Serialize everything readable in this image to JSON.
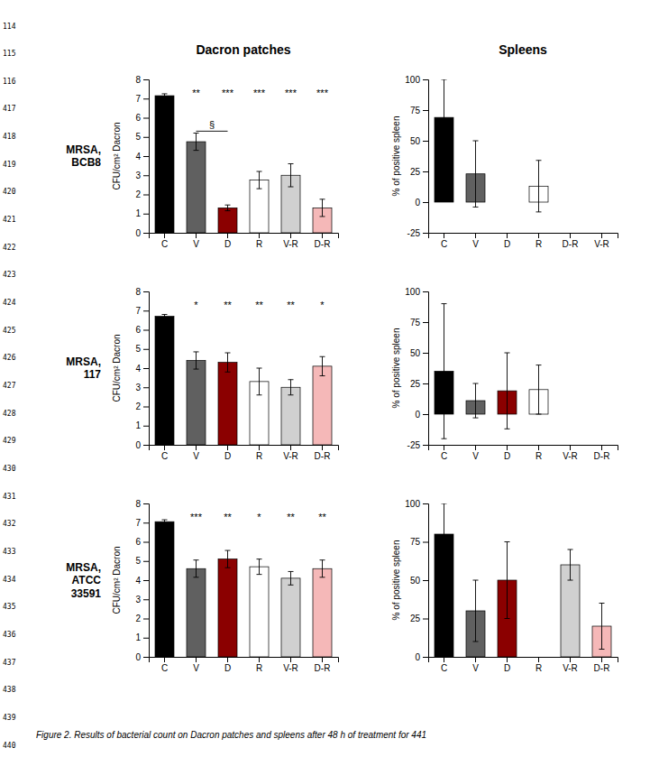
{
  "chart_data": [
    {
      "type": "bar",
      "categories": [
        "C",
        "V",
        "D",
        "R",
        "V-R",
        "D-R"
      ],
      "values": [
        7.15,
        4.75,
        1.3,
        2.75,
        3.0,
        1.3
      ],
      "errors": [
        0.1,
        0.45,
        0.15,
        0.45,
        0.6,
        0.45
      ],
      "colors": [
        "#000000",
        "#606060",
        "#8B0000",
        "#ffffff",
        "#d0d0d0",
        "#f5b8b8"
      ],
      "ylim": [
        0,
        8
      ],
      "yticks": [
        0,
        1,
        2,
        3,
        4,
        5,
        6,
        7,
        8
      ],
      "y_label": "CFU/cm² Dacron",
      "annotations": [
        {
          "text": "**",
          "x": "V",
          "y": 7.5
        },
        {
          "text": "***",
          "x": "D",
          "y": 7.5
        },
        {
          "text": "***",
          "x": "R",
          "y": 7.5
        },
        {
          "text": "***",
          "x": "V-R",
          "y": 7.5
        },
        {
          "text": "***",
          "x": "D-R",
          "y": 7.5
        },
        {
          "text": "§",
          "x_start": "V",
          "x_end": "D",
          "y": 5.3
        }
      ]
    },
    {
      "type": "bar",
      "categories": [
        "C",
        "V",
        "D",
        "R",
        "D-R",
        "V-R"
      ],
      "values": [
        69,
        23,
        0,
        13,
        0,
        0
      ],
      "errors": [
        31,
        27,
        0,
        21,
        0,
        0
      ],
      "colors": [
        "#000000",
        "#606060",
        "#ffffff",
        "#ffffff",
        "#ffffff",
        "#ffffff"
      ],
      "ylim": [
        -25,
        100
      ],
      "yticks": [
        -25,
        0,
        25,
        50,
        75,
        100
      ],
      "y_label": "% of positive spleen"
    },
    {
      "type": "bar",
      "categories": [
        "C",
        "V",
        "D",
        "R",
        "V-R",
        "D-R"
      ],
      "values": [
        6.7,
        4.4,
        4.3,
        3.3,
        3.0,
        4.1
      ],
      "errors": [
        0.1,
        0.45,
        0.5,
        0.7,
        0.4,
        0.5
      ],
      "colors": [
        "#000000",
        "#606060",
        "#8B0000",
        "#ffffff",
        "#d0d0d0",
        "#f5b8b8"
      ],
      "ylim": [
        0,
        8
      ],
      "yticks": [
        0,
        1,
        2,
        3,
        4,
        5,
        6,
        7,
        8
      ],
      "y_label": "CFU/cm² Dacron",
      "annotations": [
        {
          "text": "*",
          "x": "V",
          "y": 7.5
        },
        {
          "text": "**",
          "x": "D",
          "y": 7.5
        },
        {
          "text": "**",
          "x": "R",
          "y": 7.5
        },
        {
          "text": "**",
          "x": "V-R",
          "y": 7.5
        },
        {
          "text": "*",
          "x": "D-R",
          "y": 7.5
        }
      ]
    },
    {
      "type": "bar",
      "categories": [
        "C",
        "V",
        "D",
        "R",
        "V-R",
        "D-R"
      ],
      "values": [
        35,
        11,
        19,
        20,
        0,
        0
      ],
      "errors": [
        55,
        14,
        31,
        20,
        0,
        0
      ],
      "colors": [
        "#000000",
        "#606060",
        "#8B0000",
        "#ffffff",
        "#ffffff",
        "#ffffff"
      ],
      "ylim": [
        -25,
        100
      ],
      "yticks": [
        -25,
        0,
        25,
        50,
        75,
        100
      ],
      "y_label": "% of positive spleen"
    },
    {
      "type": "bar",
      "categories": [
        "C",
        "V",
        "D",
        "R",
        "V-R",
        "D-R"
      ],
      "values": [
        7.05,
        4.6,
        5.1,
        4.7,
        4.1,
        4.6
      ],
      "errors": [
        0.1,
        0.45,
        0.45,
        0.4,
        0.35,
        0.45
      ],
      "colors": [
        "#000000",
        "#606060",
        "#8B0000",
        "#ffffff",
        "#d0d0d0",
        "#f5b8b8"
      ],
      "ylim": [
        0,
        8
      ],
      "yticks": [
        0,
        1,
        2,
        3,
        4,
        5,
        6,
        7,
        8
      ],
      "y_label": "CFU/cm² Dacron",
      "annotations": [
        {
          "text": "***",
          "x": "V",
          "y": 7.5
        },
        {
          "text": "**",
          "x": "D",
          "y": 7.5
        },
        {
          "text": "*",
          "x": "R",
          "y": 7.5
        },
        {
          "text": "**",
          "x": "V-R",
          "y": 7.5
        },
        {
          "text": "**",
          "x": "D-R",
          "y": 7.5
        }
      ]
    },
    {
      "type": "bar",
      "categories": [
        "C",
        "V",
        "D",
        "R",
        "V-R",
        "D-R"
      ],
      "values": [
        80,
        30,
        50,
        0,
        60,
        20
      ],
      "errors": [
        20,
        20,
        25,
        0,
        10,
        15
      ],
      "colors": [
        "#000000",
        "#606060",
        "#8B0000",
        "#ffffff",
        "#d0d0d0",
        "#f5b8b8"
      ],
      "ylim": [
        0,
        100
      ],
      "yticks": [
        0,
        25,
        50,
        75,
        100
      ],
      "y_label": "% of positive spleen"
    }
  ],
  "column_titles": [
    "Dacron patches",
    "Spleens"
  ],
  "row_labels": [
    "MRSA,\nBCB8",
    "MRSA,\n117",
    "MRSA,\nATCC\n33591"
  ],
  "line_numbers": [
    "114",
    "115",
    "116",
    "417",
    "418",
    "419",
    "420",
    "421",
    "422",
    "423",
    "424",
    "425",
    "426",
    "427",
    "428",
    "429",
    "430",
    "431",
    "432",
    "433",
    "434",
    "435",
    "436",
    "437",
    "438",
    "439",
    "440"
  ],
  "caption": "Figure 2. Results of bacterial count on Dacron patches and spleens after 48 h of treatment for  441"
}
